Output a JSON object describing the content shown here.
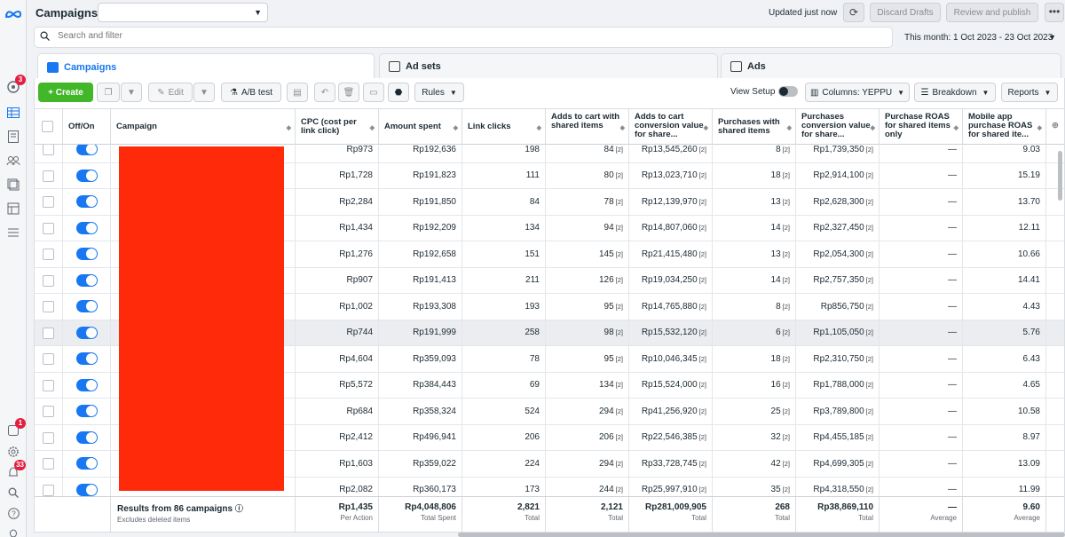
{
  "app": {
    "logo_icon": "meta-logo-icon"
  },
  "topbar": {
    "title": "Campaigns",
    "campaign_select_value": "",
    "updated": "Updated just now",
    "discard": "Discard Drafts",
    "review": "Review and publish",
    "more": "•••"
  },
  "search": {
    "placeholder": "Search and filter",
    "date_range": "This month: 1 Oct 2023 - 23 Oct 2023"
  },
  "tabs": [
    {
      "label": "Campaigns",
      "active": true
    },
    {
      "label": "Ad sets",
      "active": false
    },
    {
      "label": "Ads",
      "active": false
    }
  ],
  "toolbar": {
    "create": "+ Create",
    "edit": "Edit",
    "ab_test": "A/B test",
    "rules": "Rules",
    "view_setup": "View Setup",
    "columns": "Columns: YEPPU",
    "breakdown": "Breakdown",
    "reports": "Reports"
  },
  "rail_badges": {
    "notifications": "3",
    "activity": "1",
    "alerts": "33"
  },
  "columns": {
    "off_on": "Off/On",
    "campaign": "Campaign",
    "cpc": "CPC (cost per link click)",
    "amount_spent": "Amount spent",
    "link_clicks": "Link clicks",
    "adds_to_cart": "Adds to cart with shared items",
    "atc_value": "Adds to cart conversion value for share...",
    "purchases": "Purchases with shared items",
    "purchases_value": "Purchases conversion value for share...",
    "purchase_roas": "Purchase ROAS for shared items only",
    "mobile_roas": "Mobile app purchase ROAS for shared ite..."
  },
  "rows": [
    {
      "cpc": "Rp973",
      "amount": "Rp192,636",
      "clicks": "198",
      "atc": "84",
      "atc_value": "Rp13,545,260",
      "purch": "8",
      "purch_value": "Rp1,739,350",
      "roas": "—",
      "mroas": "9.03"
    },
    {
      "cpc": "Rp1,728",
      "amount": "Rp191,823",
      "clicks": "111",
      "atc": "80",
      "atc_value": "Rp13,023,710",
      "purch": "18",
      "purch_value": "Rp2,914,100",
      "roas": "—",
      "mroas": "15.19"
    },
    {
      "cpc": "Rp2,284",
      "amount": "Rp191,850",
      "clicks": "84",
      "atc": "78",
      "atc_value": "Rp12,139,970",
      "purch": "13",
      "purch_value": "Rp2,628,300",
      "roas": "—",
      "mroas": "13.70"
    },
    {
      "cpc": "Rp1,434",
      "amount": "Rp192,209",
      "clicks": "134",
      "atc": "94",
      "atc_value": "Rp14,807,060",
      "purch": "14",
      "purch_value": "Rp2,327,450",
      "roas": "—",
      "mroas": "12.11"
    },
    {
      "cpc": "Rp1,276",
      "amount": "Rp192,658",
      "clicks": "151",
      "atc": "145",
      "atc_value": "Rp21,415,480",
      "purch": "13",
      "purch_value": "Rp2,054,300",
      "roas": "—",
      "mroas": "10.66"
    },
    {
      "cpc": "Rp907",
      "amount": "Rp191,413",
      "clicks": "211",
      "atc": "126",
      "atc_value": "Rp19,034,250",
      "purch": "14",
      "purch_value": "Rp2,757,350",
      "roas": "—",
      "mroas": "14.41"
    },
    {
      "cpc": "Rp1,002",
      "amount": "Rp193,308",
      "clicks": "193",
      "atc": "95",
      "atc_value": "Rp14,765,880",
      "purch": "8",
      "purch_value": "Rp856,750",
      "roas": "—",
      "mroas": "4.43"
    },
    {
      "cpc": "Rp744",
      "amount": "Rp191,999",
      "clicks": "258",
      "atc": "98",
      "atc_value": "Rp15,532,120",
      "purch": "6",
      "purch_value": "Rp1,105,050",
      "roas": "—",
      "mroas": "5.76"
    },
    {
      "cpc": "Rp4,604",
      "amount": "Rp359,093",
      "clicks": "78",
      "atc": "95",
      "atc_value": "Rp10,046,345",
      "purch": "18",
      "purch_value": "Rp2,310,750",
      "roas": "—",
      "mroas": "6.43"
    },
    {
      "cpc": "Rp5,572",
      "amount": "Rp384,443",
      "clicks": "69",
      "atc": "134",
      "atc_value": "Rp15,524,000",
      "purch": "16",
      "purch_value": "Rp1,788,000",
      "roas": "—",
      "mroas": "4.65"
    },
    {
      "cpc": "Rp684",
      "amount": "Rp358,324",
      "clicks": "524",
      "atc": "294",
      "atc_value": "Rp41,256,920",
      "purch": "25",
      "purch_value": "Rp3,789,800",
      "roas": "—",
      "mroas": "10.58"
    },
    {
      "cpc": "Rp2,412",
      "amount": "Rp496,941",
      "clicks": "206",
      "atc": "206",
      "atc_value": "Rp22,546,385",
      "purch": "32",
      "purch_value": "Rp4,455,185",
      "roas": "—",
      "mroas": "8.97"
    },
    {
      "cpc": "Rp1,603",
      "amount": "Rp359,022",
      "clicks": "224",
      "atc": "294",
      "atc_value": "Rp33,728,745",
      "purch": "42",
      "purch_value": "Rp4,699,305",
      "roas": "—",
      "mroas": "13.09"
    },
    {
      "cpc": "Rp2,082",
      "amount": "Rp360,173",
      "clicks": "173",
      "atc": "244",
      "atc_value": "Rp25,997,910",
      "purch": "35",
      "purch_value": "Rp4,318,550",
      "roas": "—",
      "mroas": "11.99"
    }
  ],
  "footnote": "[2]",
  "totals": {
    "label": "Results from 86 campaigns",
    "sub": "Excludes deleted items",
    "cpc": "Rp1,435",
    "cpc_sub": "Per Action",
    "amount": "Rp4,048,806",
    "amount_sub": "Total Spent",
    "clicks": "2,821",
    "clicks_sub": "Total",
    "atc": "2,121",
    "atc_sub": "Total",
    "atc_value": "Rp281,009,905",
    "atc_value_sub": "Total",
    "purch": "268",
    "purch_sub": "Total",
    "purch_value": "Rp38,869,110",
    "purch_value_sub": "Total",
    "roas": "—",
    "roas_sub": "Average",
    "mroas": "9.60",
    "mroas_sub": "Average"
  },
  "colors": {
    "accent": "#1877f2",
    "create": "#42b72a",
    "redaction": "#ff2a0a"
  }
}
